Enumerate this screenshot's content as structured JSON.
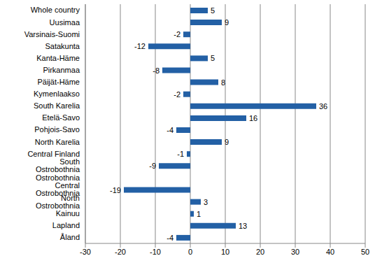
{
  "chart_data": {
    "type": "bar",
    "orientation": "horizontal",
    "categories": [
      "Whole country",
      "Uusimaa",
      "Varsinais-Suomi",
      "Satakunta",
      "Kanta-Häme",
      "Pirkanmaa",
      "Päijät-Häme",
      "Kymenlaakso",
      "South Karelia",
      "Etelä-Savo",
      "Pohjois-Savo",
      "North Karelia",
      "Central Finland",
      "South Ostrobothnia",
      "Ostrobothnia",
      "Central Ostrobothnia",
      "North Ostrobothnia",
      "Kainuu",
      "Lapland",
      "Åland"
    ],
    "values": [
      5,
      9,
      -2,
      -12,
      5,
      -8,
      8,
      -2,
      36,
      16,
      -4,
      9,
      -1,
      -9,
      0,
      -19,
      3,
      1,
      13,
      -4
    ],
    "color": "#2360a5",
    "xlim": [
      -30,
      50
    ],
    "xticks": [
      -30,
      -20,
      -10,
      0,
      10,
      20,
      30,
      40,
      50
    ],
    "grid": true,
    "data_labels": true
  }
}
